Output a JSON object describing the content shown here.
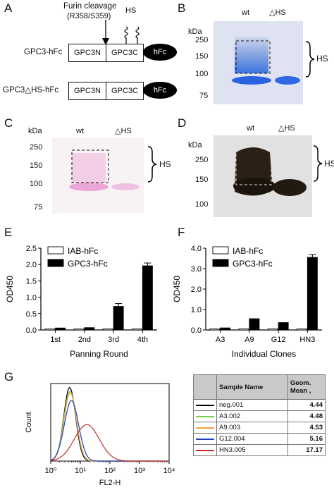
{
  "panels": {
    "A": "A",
    "B": "B",
    "C": "C",
    "D": "D",
    "E": "E",
    "F": "F",
    "G": "G"
  },
  "panelA": {
    "cleavage_label": "Furin cleavage",
    "cleavage_sites": "(R358/S359)",
    "hs_label": "HS",
    "construct1": "GPC3-hFc",
    "construct2": "GPC3△HS-hFc",
    "n_term": "GPC3N",
    "c_term": "GPC3C",
    "fc": "hFc"
  },
  "panelB": {
    "kda": "kDa",
    "lane1": "wt",
    "lane2": "△HS",
    "hs": "HS",
    "markers": [
      "250",
      "150",
      "100",
      "75"
    ]
  },
  "panelC": {
    "kda": "kDa",
    "lane1": "wt",
    "lane2": "△HS",
    "hs": "HS",
    "markers": [
      "250",
      "150",
      "100",
      "75"
    ]
  },
  "panelD": {
    "kda": "kDa",
    "lane1": "wt",
    "lane2": "△HS",
    "hs": "HS",
    "markers": [
      "250",
      "150",
      "100"
    ]
  },
  "chart_data": [
    {
      "type": "bar",
      "panel": "E",
      "categories": [
        "1st",
        "2nd",
        "3rd",
        "4th"
      ],
      "xlabel": "Panning Round",
      "ylabel": "OD450",
      "ylim": [
        0,
        2.5
      ],
      "yticks": [
        "0.0",
        "0.5",
        "1.0",
        "1.5",
        "2.0",
        "2.5"
      ],
      "legend_position": "top-left",
      "series": [
        {
          "name": "IAB-hFc",
          "color": "#ffffff",
          "values": [
            0.03,
            0.03,
            0.03,
            0.03
          ]
        },
        {
          "name": "GPC3-hFc",
          "color": "#000000",
          "values": [
            0.06,
            0.07,
            0.72,
            1.96
          ]
        }
      ]
    },
    {
      "type": "bar",
      "panel": "F",
      "categories": [
        "A3",
        "A9",
        "G12",
        "HN3"
      ],
      "xlabel": "Individual Clones",
      "ylabel": "OD450",
      "ylim": [
        0,
        4.0
      ],
      "yticks": [
        "0.0",
        "1.0",
        "2.0",
        "3.0",
        "4.0"
      ],
      "legend_position": "top-left",
      "series": [
        {
          "name": "IAB-hFc",
          "color": "#ffffff",
          "values": [
            0.05,
            0.05,
            0.05,
            0.05
          ]
        },
        {
          "name": "GPC3-hFc",
          "color": "#000000",
          "values": [
            0.1,
            0.55,
            0.36,
            3.55
          ]
        }
      ]
    },
    {
      "type": "line",
      "panel": "G",
      "xlabel": "FL2-H",
      "ylabel": "Count",
      "xscale": "log",
      "xlim": [
        1,
        10000
      ],
      "xticks": [
        "10⁰",
        "10¹",
        "10²",
        "10³",
        "10⁴"
      ],
      "series": [
        {
          "name": "neg.001",
          "color": "#000000",
          "geom_mean": 4.44
        },
        {
          "name": "A3.002",
          "color": "#7ccd4f",
          "geom_mean": 4.48
        },
        {
          "name": "A9.003",
          "color": "#f0a040",
          "geom_mean": 4.53
        },
        {
          "name": "G12.004",
          "color": "#2040c0",
          "geom_mean": 5.16
        },
        {
          "name": "HN3.005",
          "color": "#c03030",
          "geom_mean": 17.17
        }
      ]
    }
  ],
  "table": {
    "col1": "Sample Name",
    "col2a": "Geom.",
    "col2b": "Mean ,",
    "rows": [
      {
        "name": "neg.001",
        "mean": "4.44",
        "color": "#000000"
      },
      {
        "name": "A3.002",
        "mean": "4.48",
        "color": "#7ccd4f"
      },
      {
        "name": "A9.003",
        "mean": "4.53",
        "color": "#f0a040"
      },
      {
        "name": "G12.004",
        "mean": "5.16",
        "color": "#2040c0"
      },
      {
        "name": "HN3.005",
        "mean": "17.17",
        "color": "#c03030"
      }
    ]
  }
}
